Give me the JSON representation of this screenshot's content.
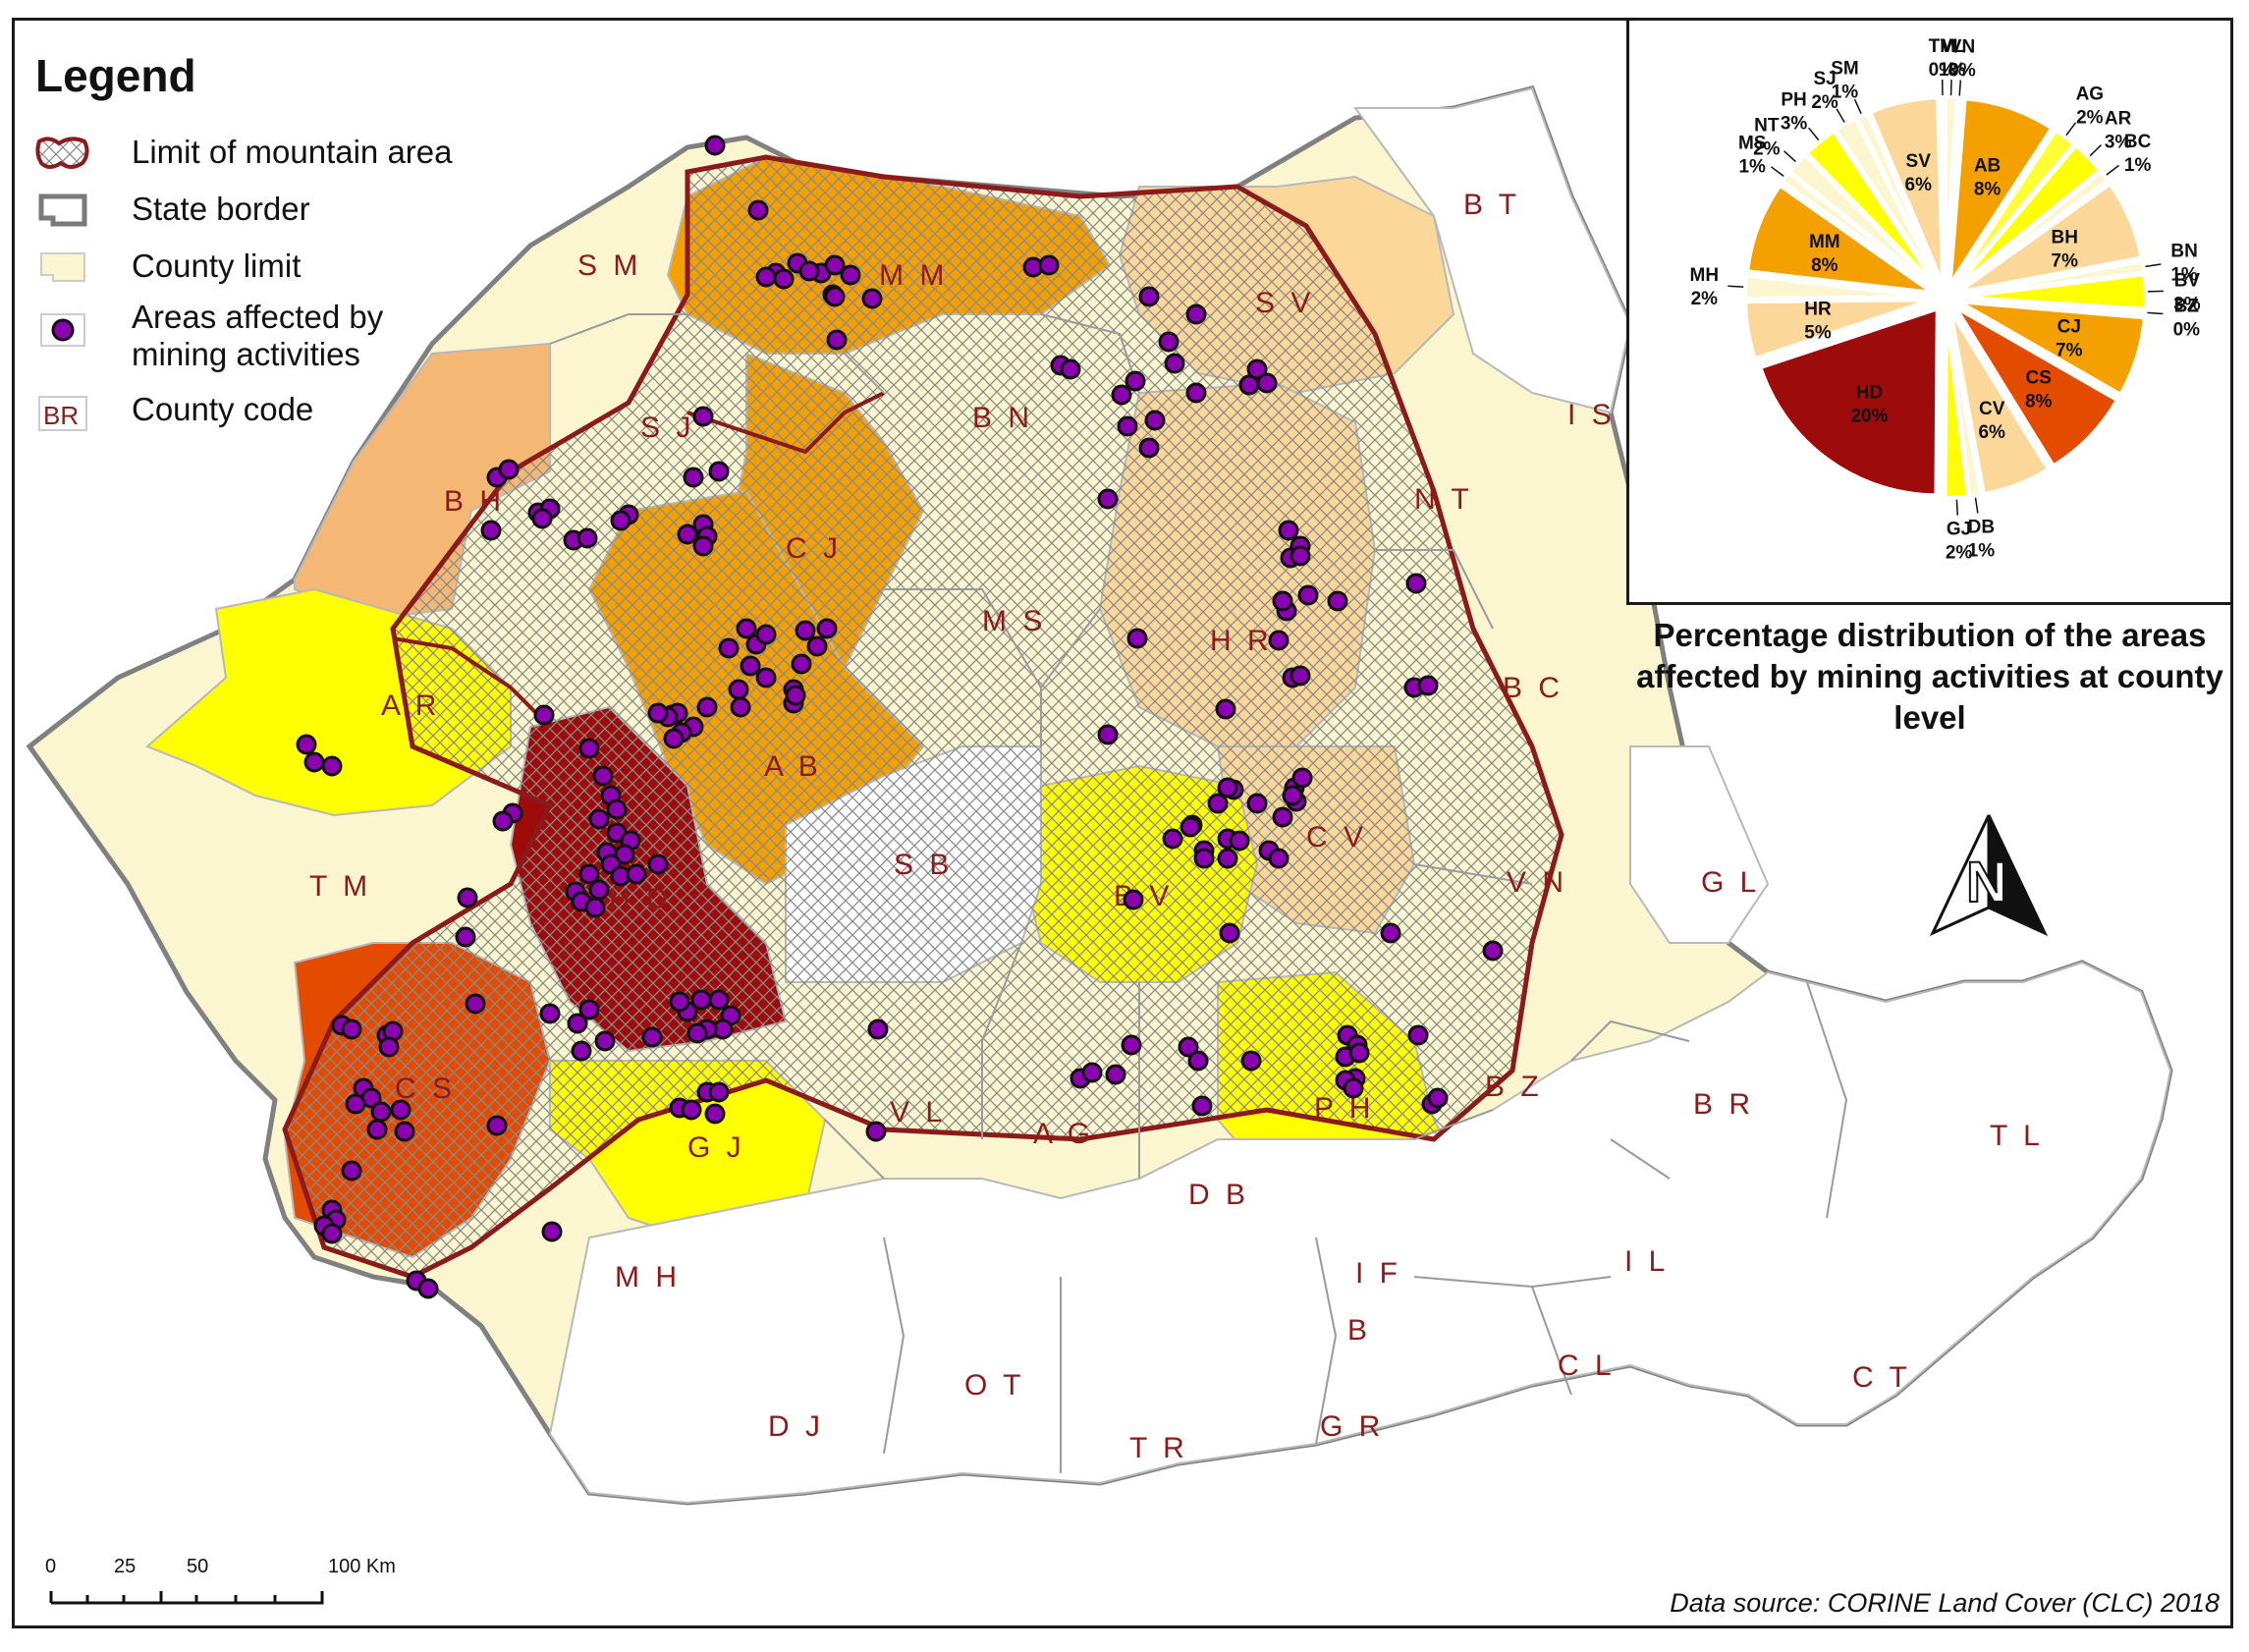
{
  "legend": {
    "title": "Legend",
    "items": [
      {
        "label": "Limit of mountain area",
        "icon": "hatched-mountain-area-swatch"
      },
      {
        "label": "State border",
        "icon": "state-border-swatch"
      },
      {
        "label": "County limit",
        "icon": "county-limit-swatch"
      },
      {
        "label": "Areas affected by",
        "label2": "mining activities",
        "icon": "mining-point-swatch"
      },
      {
        "label": "County code",
        "code": "BR",
        "icon": "county-code-swatch"
      }
    ]
  },
  "counties": [
    {
      "code": "S M"
    },
    {
      "code": "M M"
    },
    {
      "code": "S V"
    },
    {
      "code": "B T"
    },
    {
      "code": "S J"
    },
    {
      "code": "B N"
    },
    {
      "code": "I S"
    },
    {
      "code": "B H"
    },
    {
      "code": "C J"
    },
    {
      "code": "N T"
    },
    {
      "code": "M S"
    },
    {
      "code": "H R"
    },
    {
      "code": "A R"
    },
    {
      "code": "A B"
    },
    {
      "code": "B C"
    },
    {
      "code": "T M"
    },
    {
      "code": "H D"
    },
    {
      "code": "S B"
    },
    {
      "code": "C V"
    },
    {
      "code": "B V"
    },
    {
      "code": "V N"
    },
    {
      "code": "G L"
    },
    {
      "code": "C S"
    },
    {
      "code": "V L"
    },
    {
      "code": "A G"
    },
    {
      "code": "P H"
    },
    {
      "code": "B Z"
    },
    {
      "code": "B R"
    },
    {
      "code": "T L"
    },
    {
      "code": "G J"
    },
    {
      "code": "D B"
    },
    {
      "code": "M H"
    },
    {
      "code": "I F"
    },
    {
      "code": "I L"
    },
    {
      "code": "B"
    },
    {
      "code": "C L"
    },
    {
      "code": "C T"
    },
    {
      "code": "O T"
    },
    {
      "code": "D J"
    },
    {
      "code": "T R"
    },
    {
      "code": "G R"
    }
  ],
  "colors": {
    "county_default": "#fbf6cf",
    "no_data": "#ffffff",
    "level_1": "#fcd79a",
    "level_2": "#f5b774",
    "level_3": "#f4a000",
    "level_4": "#e24b00",
    "level_5": "#9d0b0b",
    "highlight_yellow": "#ffff00",
    "mountain_limit": "#8b1a1a",
    "mining_point": "#8b00b0",
    "state_border": "#808080"
  },
  "pie": {
    "title": "Percentage distribution of the areas affected by mining activities at county level",
    "slices": [
      {
        "code": "AB",
        "value": 8,
        "label": "8%",
        "color": "#f4a000"
      },
      {
        "code": "AG",
        "value": 2,
        "label": "2%",
        "color": "#ffff33"
      },
      {
        "code": "AR",
        "value": 3,
        "label": "3%",
        "color": "#ffff00"
      },
      {
        "code": "BC",
        "value": 1,
        "label": "1%",
        "color": "#fbf6cf"
      },
      {
        "code": "BH",
        "value": 7,
        "label": "7%",
        "color": "#fcd79a"
      },
      {
        "code": "BN",
        "value": 1,
        "label": "1%",
        "color": "#fbf6cf"
      },
      {
        "code": "BV",
        "value": 3,
        "label": "3%",
        "color": "#ffff00"
      },
      {
        "code": "BZ",
        "value": 0,
        "label": "0%",
        "color": "#fbf6cf"
      },
      {
        "code": "CJ",
        "value": 7,
        "label": "7%",
        "color": "#f4a000"
      },
      {
        "code": "CS",
        "value": 8,
        "label": "8%",
        "color": "#e24b00"
      },
      {
        "code": "CV",
        "value": 6,
        "label": "6%",
        "color": "#fcd79a"
      },
      {
        "code": "DB",
        "value": 1,
        "label": "1%",
        "color": "#fbf6cf"
      },
      {
        "code": "GJ",
        "value": 2,
        "label": "2%",
        "color": "#ffff00"
      },
      {
        "code": "HD",
        "value": 20,
        "label": "20%",
        "color": "#9d0b0b"
      },
      {
        "code": "HR",
        "value": 5,
        "label": "5%",
        "color": "#fcd79a"
      },
      {
        "code": "MH",
        "value": 2,
        "label": "2%",
        "color": "#fbf6cf"
      },
      {
        "code": "MM",
        "value": 8,
        "label": "8%",
        "color": "#f4a000"
      },
      {
        "code": "MS",
        "value": 1,
        "label": "1%",
        "color": "#fbf6cf"
      },
      {
        "code": "NT",
        "value": 2,
        "label": "2%",
        "color": "#fbf6cf"
      },
      {
        "code": "PH",
        "value": 3,
        "label": "3%",
        "color": "#ffff00"
      },
      {
        "code": "SJ",
        "value": 2,
        "label": "2%",
        "color": "#fbf6cf"
      },
      {
        "code": "SM",
        "value": 1,
        "label": "1%",
        "color": "#fbf6cf"
      },
      {
        "code": "SV",
        "value": 6,
        "label": "6%",
        "color": "#fcd79a"
      },
      {
        "code": "TM",
        "value": 0,
        "label": "0%",
        "color": "#fbf6cf"
      },
      {
        "code": "VL",
        "value": 1,
        "label": "1%",
        "color": "#fbf6cf"
      },
      {
        "code": "VN",
        "value": 0,
        "label": "0%",
        "color": "#fbf6cf"
      }
    ]
  },
  "north_arrow": {
    "letter": "N"
  },
  "scale_bar": {
    "ticks": [
      {
        "label": "0"
      },
      {
        "label": "25"
      },
      {
        "label": "50"
      },
      {
        "label": "100 Km"
      }
    ]
  },
  "data_source": "Data source: CORINE Land Cover (CLC) 2018"
}
